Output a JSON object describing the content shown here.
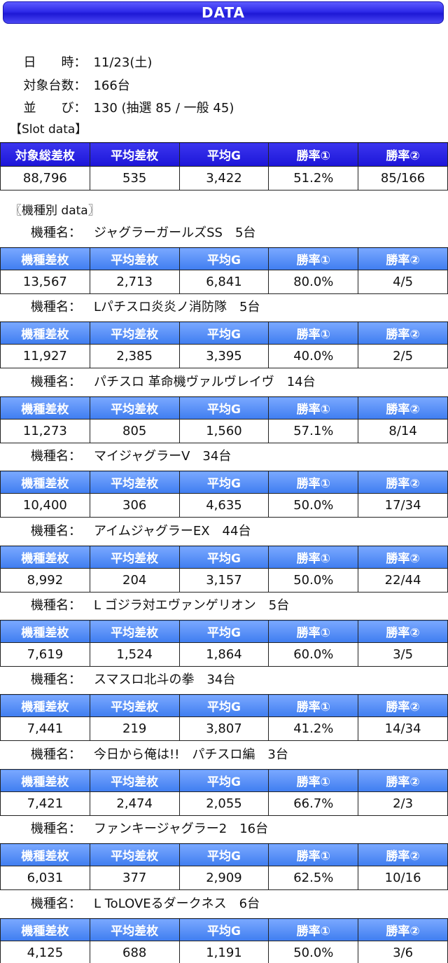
{
  "title": "DATA",
  "info": [
    {
      "label": "日　　時：",
      "value": "11/23(土)"
    },
    {
      "label": "対象台数：",
      "value": "166台"
    },
    {
      "label": "並　　び：",
      "value": "130 (抽選 85 / 一般 45)"
    }
  ],
  "slot_section_label": "【Slot data】",
  "slot_headers": [
    "対象総差枚",
    "平均差枚",
    "平均G",
    "勝率①",
    "勝率②"
  ],
  "slot_values": [
    "88,796",
    "535",
    "3,422",
    "51.2%",
    "85/166"
  ],
  "model_section_label": "〖機種別 data〗",
  "model_label": "機種名：",
  "model_headers": [
    "機種差枚",
    "平均差枚",
    "平均G",
    "勝率①",
    "勝率②"
  ],
  "models": [
    {
      "name": "ジャグラーガールズSS　5台",
      "values": [
        "13,567",
        "2,713",
        "6,841",
        "80.0%",
        "4/5"
      ]
    },
    {
      "name": "Lパチスロ炎炎ノ消防隊　5台",
      "values": [
        "11,927",
        "2,385",
        "3,395",
        "40.0%",
        "2/5"
      ]
    },
    {
      "name": "パチスロ 革命機ヴァルヴレイヴ　14台",
      "values": [
        "11,273",
        "805",
        "1,560",
        "57.1%",
        "8/14"
      ]
    },
    {
      "name": "マイジャグラーV　34台",
      "values": [
        "10,400",
        "306",
        "4,635",
        "50.0%",
        "17/34"
      ]
    },
    {
      "name": "アイムジャグラーEX　44台",
      "values": [
        "8,992",
        "204",
        "3,157",
        "50.0%",
        "22/44"
      ]
    },
    {
      "name": "L ゴジラ対エヴァンゲリオン　5台",
      "values": [
        "7,619",
        "1,524",
        "1,864",
        "60.0%",
        "3/5"
      ]
    },
    {
      "name": "スマスロ北斗の拳　34台",
      "values": [
        "7,441",
        "219",
        "3,807",
        "41.2%",
        "14/34"
      ]
    },
    {
      "name": "今日から俺は!!　パチスロ編　3台",
      "values": [
        "7,421",
        "2,474",
        "2,055",
        "66.7%",
        "2/3"
      ]
    },
    {
      "name": "ファンキージャグラー2　16台",
      "values": [
        "6,031",
        "377",
        "2,909",
        "62.5%",
        "10/16"
      ]
    },
    {
      "name": "L ToLOVEるダークネス　6台",
      "values": [
        "4,125",
        "688",
        "1,191",
        "50.0%",
        "3/6"
      ]
    }
  ]
}
